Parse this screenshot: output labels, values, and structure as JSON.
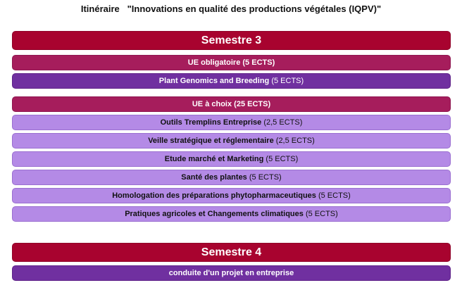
{
  "title": {
    "prefix": "Itinéraire",
    "name": "\"Innovations en qualité des productions végétales (IQPV)\""
  },
  "semester3": {
    "heading": "Semestre 3",
    "mandatory_header": {
      "label": "UE obligatoire",
      "ects": "(5 ECTS)"
    },
    "mandatory_courses": [
      {
        "label": "Plant Genomics and Breeding",
        "ects": "(5 ECTS)"
      }
    ],
    "elective_header": {
      "label": "UE à choix",
      "ects": "(25 ECTS)"
    },
    "elective_courses": [
      {
        "label": "Outils Tremplins Entreprise",
        "ects": "(2,5 ECTS)"
      },
      {
        "label": "Veille stratégique et réglementaire",
        "ects": "(2,5 ECTS)"
      },
      {
        "label": "Etude marché et Marketing",
        "ects": "(5 ECTS)"
      },
      {
        "label": "Santé des plantes",
        "ects": "(5 ECTS)"
      },
      {
        "label": "Homologation des préparations phytopharmaceutiques",
        "ects": "(5 ECTS)"
      },
      {
        "label": "Pratiques agricoles et Changements climatiques",
        "ects": "(5 ECTS)"
      }
    ]
  },
  "semester4": {
    "heading": "Semestre 4",
    "courses": [
      {
        "label": "conduite d'un projet en entreprise"
      }
    ]
  },
  "colors": {
    "semester_bar": "#a8032f",
    "ue_header": "#a61d5c",
    "mandatory_course": "#7030a0",
    "elective_course": "#b48ae6"
  }
}
